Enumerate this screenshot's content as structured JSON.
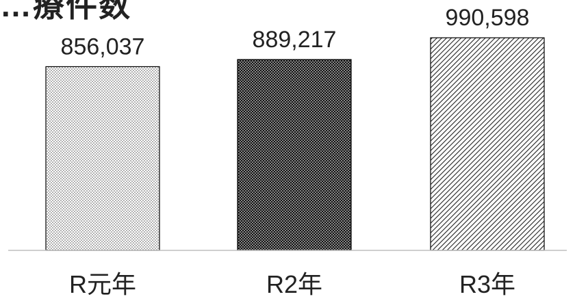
{
  "title": "…療件数",
  "chart_data": {
    "type": "bar",
    "title": "…療件数",
    "categories": [
      "R元年",
      "R2年",
      "R3年"
    ],
    "values": [
      856037,
      889217,
      990598
    ],
    "data_labels": [
      "856,037",
      "889,217",
      "990,598"
    ],
    "xlabel": "",
    "ylabel": "",
    "ylim": [
      0,
      1020000
    ],
    "grid": false,
    "legend": "none",
    "bar_patterns": [
      "light-dots",
      "dense-dots",
      "diagonal-hatch"
    ],
    "colors": {
      "bar_stroke": "#000000",
      "axis": "#bfbfbf",
      "text": "#222222"
    }
  }
}
